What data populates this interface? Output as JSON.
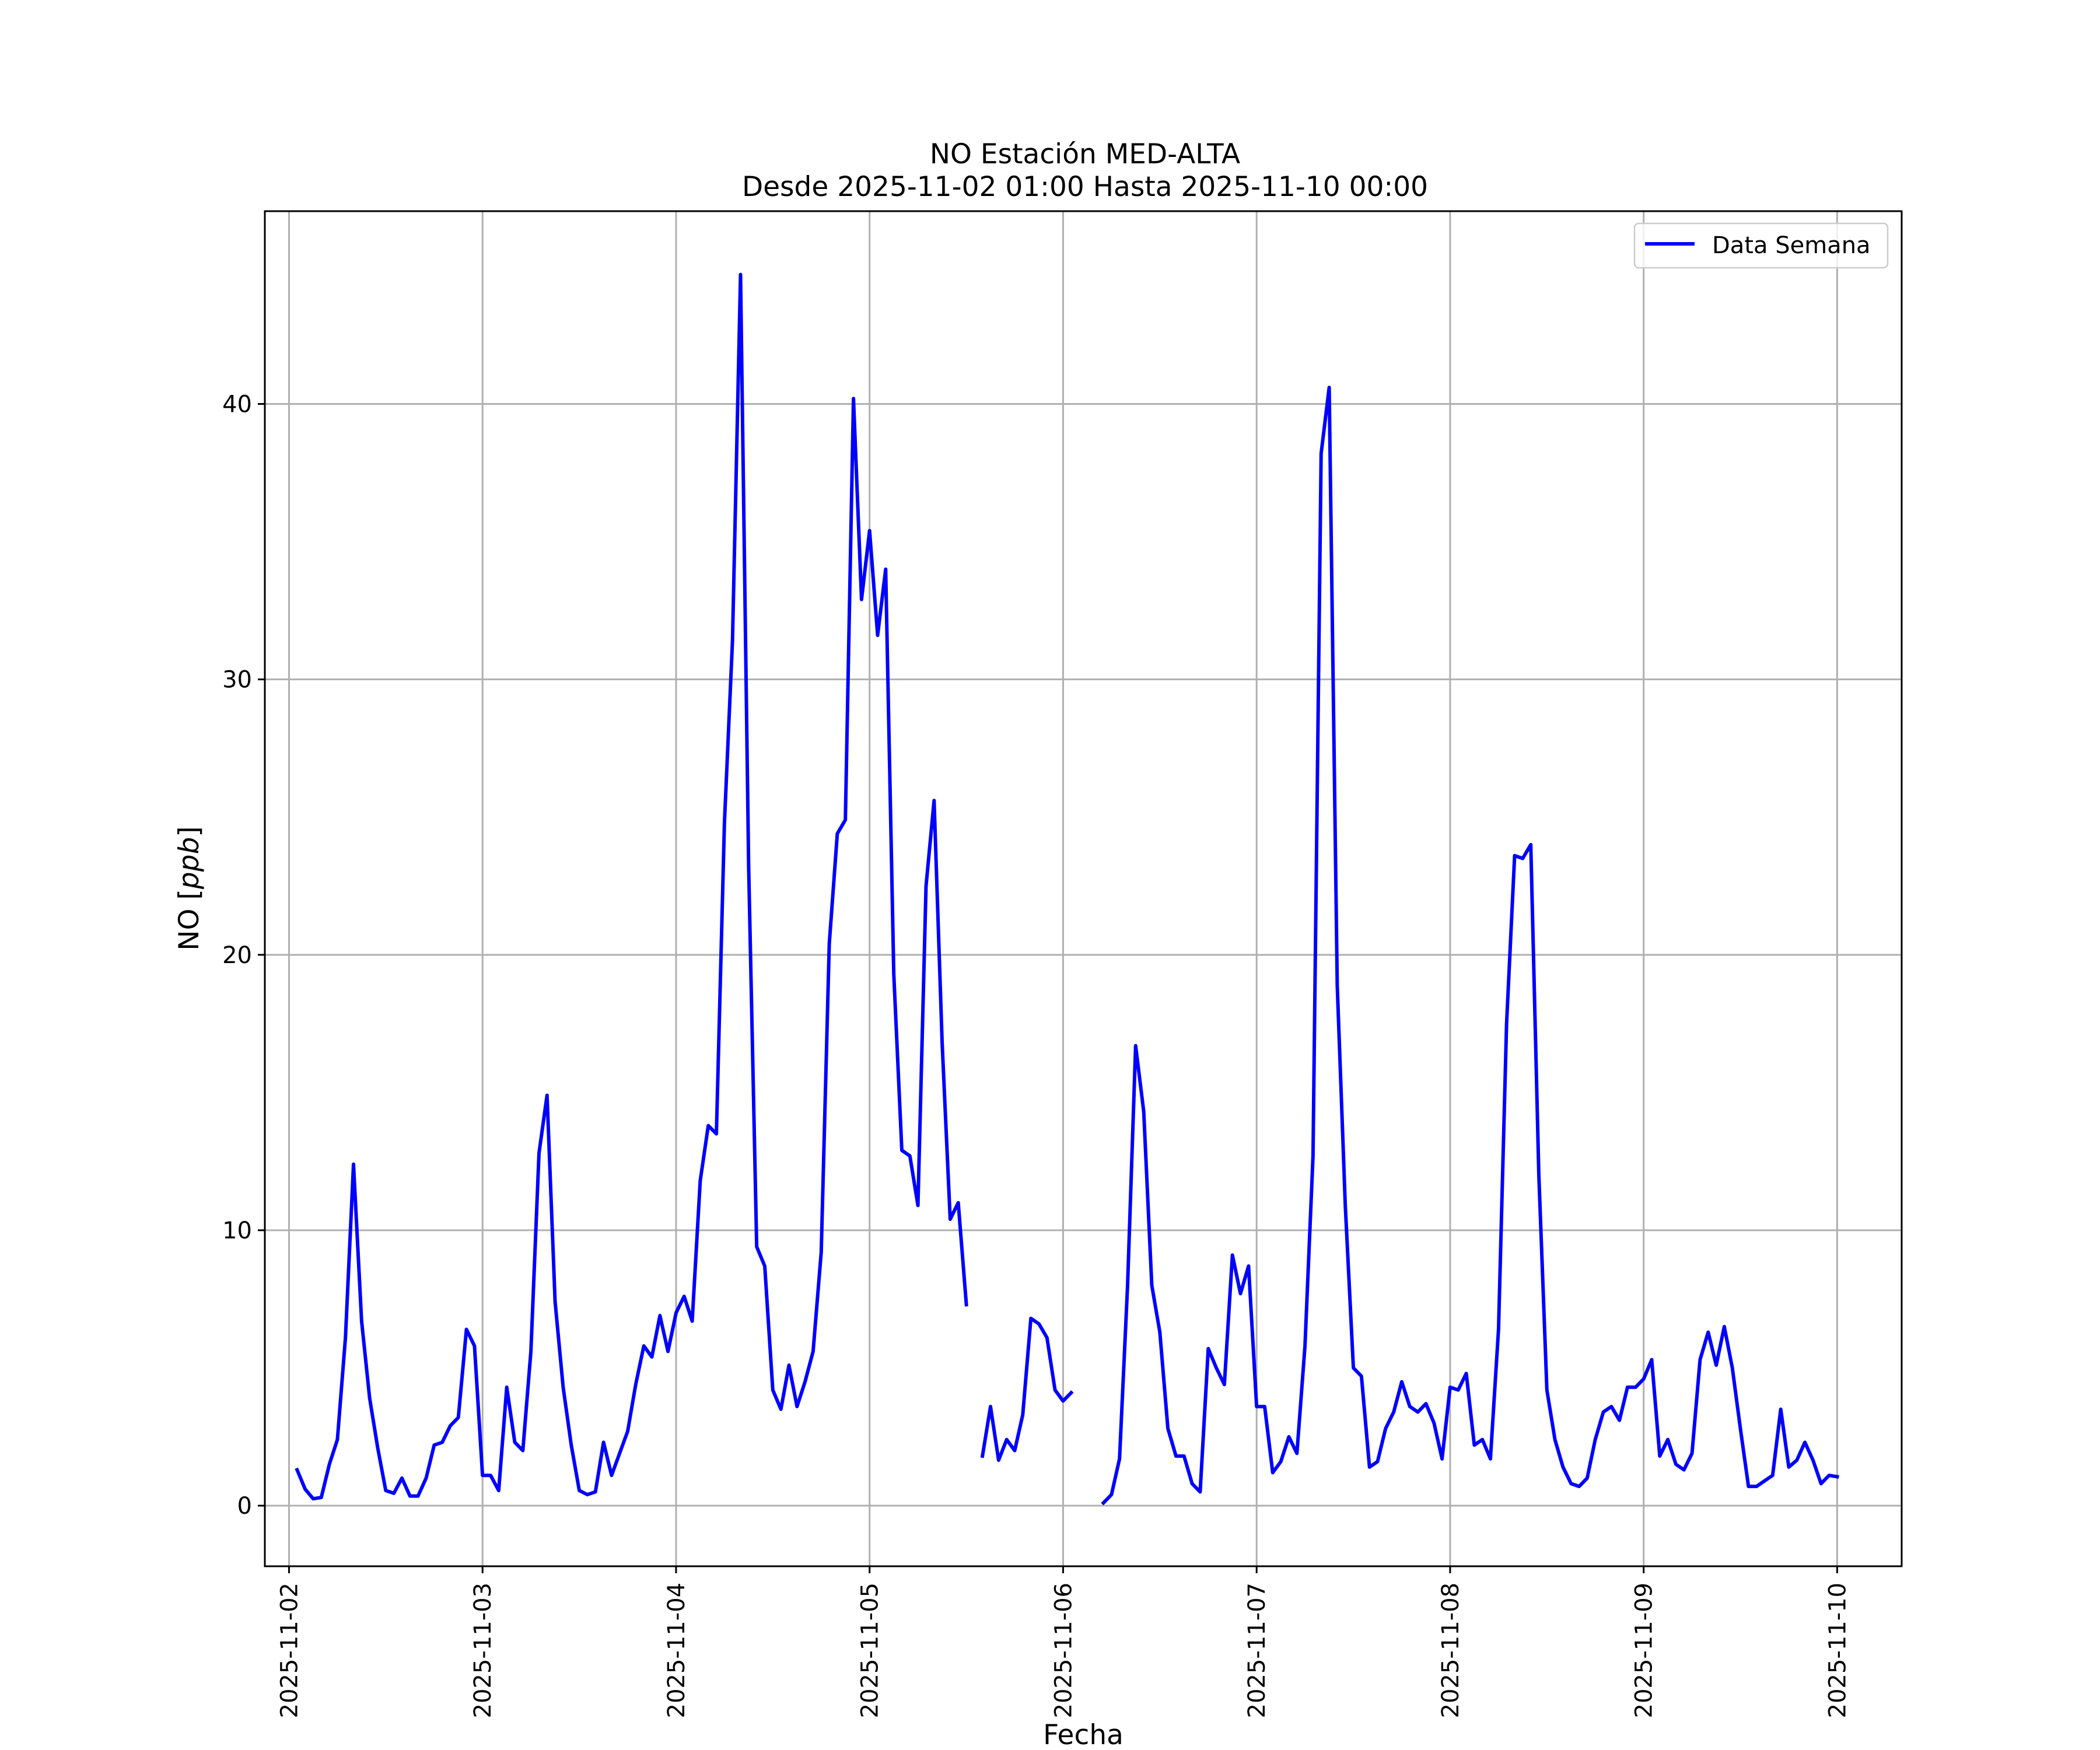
{
  "chart_data": {
    "type": "line",
    "title": "NO Estación MED-ALTA",
    "subtitle": "Desde 2025-11-02 01:00 Hasta 2025-11-10 00:00",
    "xlabel": "Fecha",
    "ylabel": "NO [ppb]",
    "ylabel_main": "NO [",
    "ylabel_unit": "ppb",
    "ylabel_close": "]",
    "xlim": [
      "2025-11-01 21:00",
      "2025-11-10 08:00"
    ],
    "ylim": [
      -2.2,
      47
    ],
    "x_ticks": [
      "2025-11-02",
      "2025-11-03",
      "2025-11-04",
      "2025-11-05",
      "2025-11-06",
      "2025-11-07",
      "2025-11-08",
      "2025-11-09",
      "2025-11-10"
    ],
    "y_ticks": [
      0,
      10,
      20,
      30,
      40
    ],
    "y_tick_labels": [
      "0",
      "10",
      "20",
      "30",
      "40"
    ],
    "grid": true,
    "legend": {
      "position": "top-right",
      "entries": [
        "Data Semana"
      ]
    },
    "series": [
      {
        "name": "Data Semana",
        "color": "#0000ff",
        "start": "2025-11-02 01:00",
        "step_hours": 1,
        "values": [
          1.3,
          0.6,
          0.25,
          0.3,
          1.5,
          2.4,
          6.1,
          12.4,
          6.7,
          3.9,
          2.1,
          0.55,
          0.45,
          1.0,
          0.35,
          0.35,
          1.0,
          2.2,
          2.3,
          2.9,
          3.2,
          6.4,
          5.8,
          1.1,
          1.1,
          0.55,
          4.3,
          2.3,
          2.0,
          5.6,
          12.8,
          14.9,
          7.4,
          4.3,
          2.2,
          0.55,
          0.4,
          0.5,
          2.3,
          1.1,
          1.9,
          2.7,
          4.4,
          5.8,
          5.4,
          6.9,
          5.6,
          7.0,
          7.6,
          6.7,
          11.8,
          13.8,
          13.5,
          24.8,
          31.4,
          44.7,
          23.2,
          9.4,
          8.7,
          4.2,
          3.5,
          5.1,
          3.6,
          4.5,
          5.6,
          9.2,
          20.4,
          24.4,
          24.9,
          40.2,
          32.9,
          35.4,
          31.6,
          34.0,
          19.3,
          12.9,
          12.7,
          10.9,
          22.5,
          25.6,
          16.8,
          10.4,
          11.0,
          7.3,
          null,
          1.8,
          3.6,
          1.65,
          2.4,
          2.0,
          3.3,
          6.8,
          6.6,
          6.1,
          4.2,
          3.8,
          4.1,
          null,
          null,
          null,
          0.1,
          0.4,
          1.7,
          8.0,
          16.7,
          14.3,
          8.0,
          6.3,
          2.8,
          1.8,
          1.8,
          0.8,
          0.5,
          5.7,
          5.0,
          4.4,
          9.1,
          7.7,
          8.7,
          3.6,
          3.6,
          1.2,
          1.6,
          2.5,
          1.9,
          5.8,
          12.7,
          38.2,
          40.6,
          18.9,
          10.9,
          5.0,
          4.7,
          1.4,
          1.6,
          2.8,
          3.4,
          4.5,
          3.6,
          3.4,
          3.7,
          3.0,
          1.7,
          4.3,
          4.2,
          4.8,
          2.2,
          2.4,
          1.7,
          6.4,
          17.5,
          23.6,
          23.5,
          24.0,
          12.0,
          4.2,
          2.4,
          1.4,
          0.8,
          0.7,
          1.0,
          2.4,
          3.4,
          3.6,
          3.1,
          4.3,
          4.3,
          4.6,
          5.3,
          1.8,
          2.4,
          1.5,
          1.3,
          1.9,
          5.3,
          6.3,
          5.1,
          6.5,
          5.0,
          2.8,
          0.7,
          0.7,
          0.9,
          1.1,
          3.5,
          1.4,
          1.65,
          2.3,
          1.65,
          0.8,
          1.1,
          1.05
        ]
      }
    ]
  }
}
